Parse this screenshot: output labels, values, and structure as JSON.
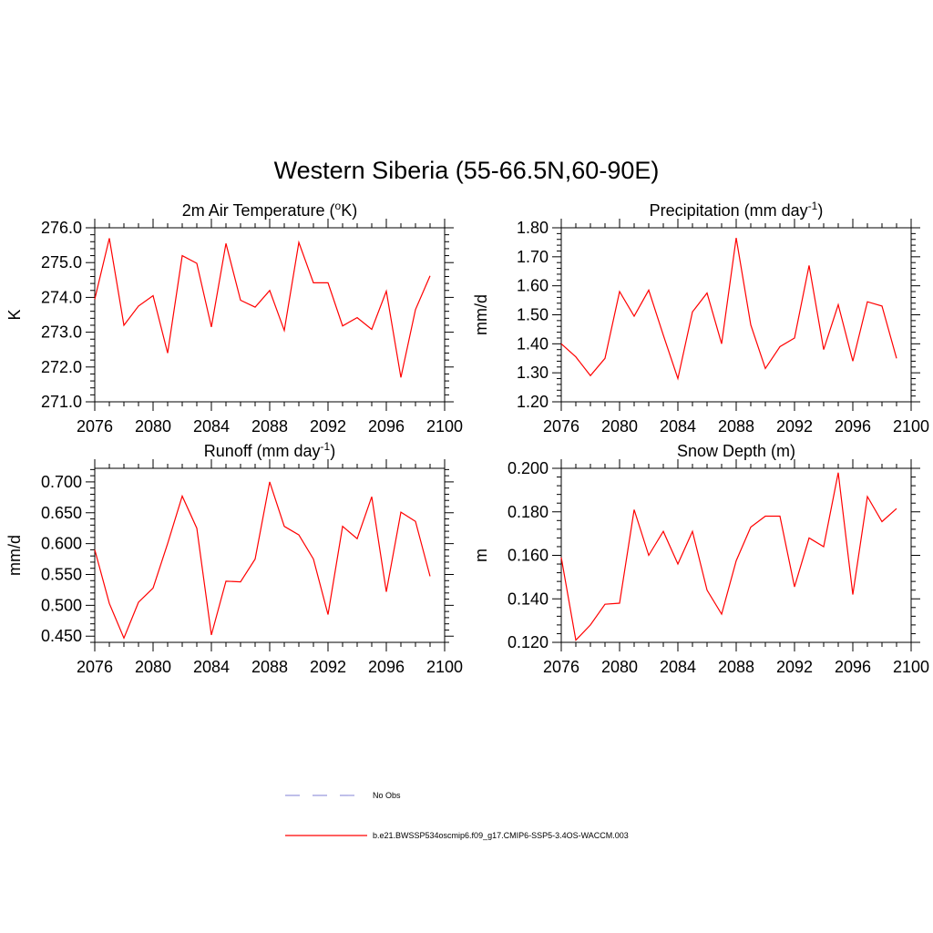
{
  "page": {
    "title": "Western Siberia (55-66.5N,60-90E)"
  },
  "legend": {
    "entries": [
      {
        "label": "No Obs",
        "color": "#9999dd",
        "style": "dashed"
      },
      {
        "label": "b.e21.BWSSP534oscmip6.f09_g17.CMIP6-SSP5-3.4OS-WACCM.003",
        "color": "#ff0000",
        "style": "solid"
      }
    ]
  },
  "chart_data": [
    {
      "type": "line",
      "title_main": "2m Air Temperature (",
      "title_sup": "o",
      "title_tail": "K)",
      "ylabel": "K",
      "xlabel": "",
      "xlim": [
        2076,
        2100
      ],
      "ylim": [
        271.0,
        276.0
      ],
      "xticks": [
        "2076",
        "2080",
        "2084",
        "2088",
        "2092",
        "2096",
        "2100"
      ],
      "yticks": [
        "271.0",
        "272.0",
        "273.0",
        "274.0",
        "275.0",
        "276.0"
      ],
      "x": [
        2076,
        2077,
        2078,
        2079,
        2080,
        2081,
        2082,
        2083,
        2084,
        2085,
        2086,
        2087,
        2088,
        2089,
        2090,
        2091,
        2092,
        2093,
        2094,
        2095,
        2096,
        2097,
        2098,
        2099
      ],
      "series": [
        {
          "color": "#ff0000",
          "values": [
            273.95,
            275.7,
            273.2,
            273.75,
            274.05,
            272.4,
            275.2,
            274.98,
            273.15,
            275.55,
            273.92,
            273.72,
            274.2,
            273.05,
            275.58,
            274.42,
            274.42,
            273.18,
            273.42,
            273.08,
            274.18,
            271.7,
            273.65,
            274.62
          ]
        }
      ]
    },
    {
      "type": "line",
      "title_main": "Precipitation (mm day",
      "title_sup": "-1",
      "title_tail": ")",
      "ylabel": "mm/d",
      "xlabel": "",
      "xlim": [
        2076,
        2100
      ],
      "ylim": [
        1.2,
        1.8
      ],
      "xticks": [
        "2076",
        "2080",
        "2084",
        "2088",
        "2092",
        "2096",
        "2100"
      ],
      "yticks": [
        "1.20",
        "1.30",
        "1.40",
        "1.50",
        "1.60",
        "1.70",
        "1.80"
      ],
      "x": [
        2076,
        2077,
        2078,
        2079,
        2080,
        2081,
        2082,
        2083,
        2084,
        2085,
        2086,
        2087,
        2088,
        2089,
        2090,
        2091,
        2092,
        2093,
        2094,
        2095,
        2096,
        2097,
        2098,
        2099
      ],
      "series": [
        {
          "color": "#ff0000",
          "values": [
            1.4,
            1.355,
            1.29,
            1.35,
            1.58,
            1.495,
            1.585,
            1.43,
            1.28,
            1.51,
            1.575,
            1.4,
            1.765,
            1.465,
            1.315,
            1.39,
            1.42,
            1.67,
            1.38,
            1.535,
            1.34,
            1.545,
            1.53,
            1.35
          ]
        }
      ]
    },
    {
      "type": "line",
      "title_main": "Runoff (mm day",
      "title_sup": "-1",
      "title_tail": ")",
      "ylabel": "mm/d",
      "xlabel": "",
      "xlim": [
        2076,
        2100
      ],
      "ylim": [
        0.44,
        0.722
      ],
      "xticks": [
        "2076",
        "2080",
        "2084",
        "2088",
        "2092",
        "2096",
        "2100"
      ],
      "yticks": [
        "0.450",
        "0.500",
        "0.550",
        "0.600",
        "0.650",
        "0.700"
      ],
      "x": [
        2076,
        2077,
        2078,
        2079,
        2080,
        2081,
        2082,
        2083,
        2084,
        2085,
        2086,
        2087,
        2088,
        2089,
        2090,
        2091,
        2092,
        2093,
        2094,
        2095,
        2096,
        2097,
        2098,
        2099
      ],
      "series": [
        {
          "color": "#ff0000",
          "values": [
            0.59,
            0.503,
            0.447,
            0.505,
            0.528,
            0.6,
            0.677,
            0.625,
            0.452,
            0.539,
            0.538,
            0.575,
            0.7,
            0.628,
            0.614,
            0.575,
            0.485,
            0.628,
            0.608,
            0.676,
            0.522,
            0.651,
            0.636,
            0.547
          ]
        }
      ]
    },
    {
      "type": "line",
      "title_main": "Snow Depth (m)",
      "title_sup": "",
      "title_tail": "",
      "ylabel": "m",
      "xlabel": "",
      "xlim": [
        2076,
        2100
      ],
      "ylim": [
        0.12,
        0.2
      ],
      "xticks": [
        "2076",
        "2080",
        "2084",
        "2088",
        "2092",
        "2096",
        "2100"
      ],
      "yticks": [
        "0.120",
        "0.140",
        "0.160",
        "0.180",
        "0.200"
      ],
      "x": [
        2076,
        2077,
        2078,
        2079,
        2080,
        2081,
        2082,
        2083,
        2084,
        2085,
        2086,
        2087,
        2088,
        2089,
        2090,
        2091,
        2092,
        2093,
        2094,
        2095,
        2096,
        2097,
        2098,
        2099
      ],
      "series": [
        {
          "color": "#ff0000",
          "values": [
            0.159,
            0.121,
            0.128,
            0.1375,
            0.138,
            0.181,
            0.16,
            0.171,
            0.156,
            0.171,
            0.144,
            0.133,
            0.1575,
            0.173,
            0.178,
            0.178,
            0.1455,
            0.168,
            0.164,
            0.198,
            0.142,
            0.187,
            0.1755,
            0.1815
          ]
        }
      ]
    }
  ]
}
